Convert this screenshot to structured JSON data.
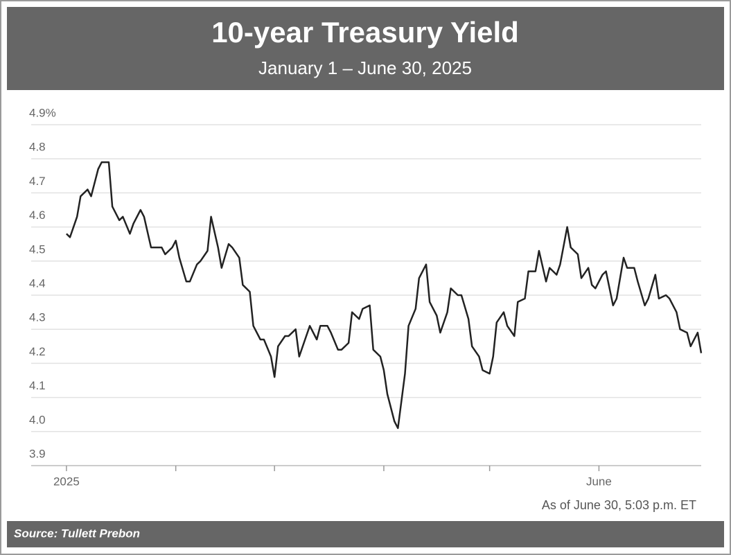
{
  "chart_data": {
    "type": "line",
    "title": "10-year Treasury Yield",
    "subtitle": "January 1 – June 30, 2025",
    "annotation": "As of June 30, 5:03 p.m. ET",
    "source": "Source: Tullett Prebon",
    "color": "#222222",
    "grid": true,
    "xlim": [
      -10,
      180
    ],
    "xticks": [
      {
        "value": 0,
        "label": "2025"
      },
      {
        "value": 151,
        "label": "June"
      }
    ],
    "xminorticks": [
      31,
      59,
      90,
      120
    ],
    "ylim": [
      3.9,
      4.9
    ],
    "yticks": [
      3.9,
      {
        "value": 4,
        "label": "4.0"
      },
      4.1,
      4.2,
      4.3,
      4.4,
      4.5,
      4.6,
      4.7,
      4.8,
      {
        "value": 4.9,
        "label": "4.9%"
      }
    ],
    "x": [
      0,
      1,
      3,
      4,
      6,
      7,
      9,
      10,
      12,
      13,
      15,
      16,
      18,
      19,
      21,
      22,
      24,
      25,
      27,
      28,
      30,
      31,
      32,
      34,
      35,
      37,
      38,
      40,
      41,
      43,
      44,
      46,
      47,
      49,
      50,
      52,
      53,
      55,
      56,
      58,
      59,
      60,
      62,
      63,
      65,
      66,
      68,
      69,
      71,
      72,
      74,
      75,
      77,
      78,
      80,
      81,
      83,
      84,
      86,
      87,
      89,
      90,
      91,
      93,
      94,
      96,
      97,
      99,
      100,
      102,
      103,
      105,
      106,
      108,
      109,
      111,
      112,
      114,
      115,
      117,
      118,
      120,
      121,
      122,
      124,
      125,
      127,
      128,
      130,
      131,
      133,
      134,
      136,
      137,
      139,
      140,
      142,
      143,
      145,
      146,
      148,
      149,
      150,
      152,
      153,
      155,
      156,
      158,
      159,
      161,
      162,
      164,
      165,
      167,
      168,
      170,
      171,
      173,
      174,
      176,
      177,
      179,
      180
    ],
    "values": [
      4.58,
      4.57,
      4.63,
      4.69,
      4.71,
      4.69,
      4.77,
      4.79,
      4.79,
      4.66,
      4.62,
      4.63,
      4.58,
      4.61,
      4.65,
      4.63,
      4.54,
      4.54,
      4.54,
      4.52,
      4.54,
      4.56,
      4.51,
      4.44,
      4.44,
      4.49,
      4.5,
      4.53,
      4.63,
      4.54,
      4.48,
      4.55,
      4.54,
      4.51,
      4.43,
      4.41,
      4.31,
      4.27,
      4.27,
      4.22,
      4.16,
      4.25,
      4.28,
      4.28,
      4.3,
      4.22,
      4.28,
      4.31,
      4.27,
      4.31,
      4.31,
      4.29,
      4.24,
      4.24,
      4.26,
      4.35,
      4.33,
      4.36,
      4.37,
      4.24,
      4.22,
      4.18,
      4.11,
      4.03,
      4.01,
      4.17,
      4.31,
      4.36,
      4.45,
      4.49,
      4.38,
      4.34,
      4.29,
      4.35,
      4.42,
      4.4,
      4.4,
      4.33,
      4.25,
      4.22,
      4.18,
      4.17,
      4.22,
      4.32,
      4.35,
      4.31,
      4.28,
      4.38,
      4.39,
      4.47,
      4.47,
      4.53,
      4.44,
      4.48,
      4.46,
      4.49,
      4.6,
      4.54,
      4.52,
      4.45,
      4.48,
      4.43,
      4.42,
      4.46,
      4.47,
      4.37,
      4.39,
      4.51,
      4.48,
      4.48,
      4.44,
      4.37,
      4.39,
      4.46,
      4.39,
      4.4,
      4.39,
      4.35,
      4.3,
      4.29,
      4.25,
      4.29,
      4.23
    ]
  }
}
